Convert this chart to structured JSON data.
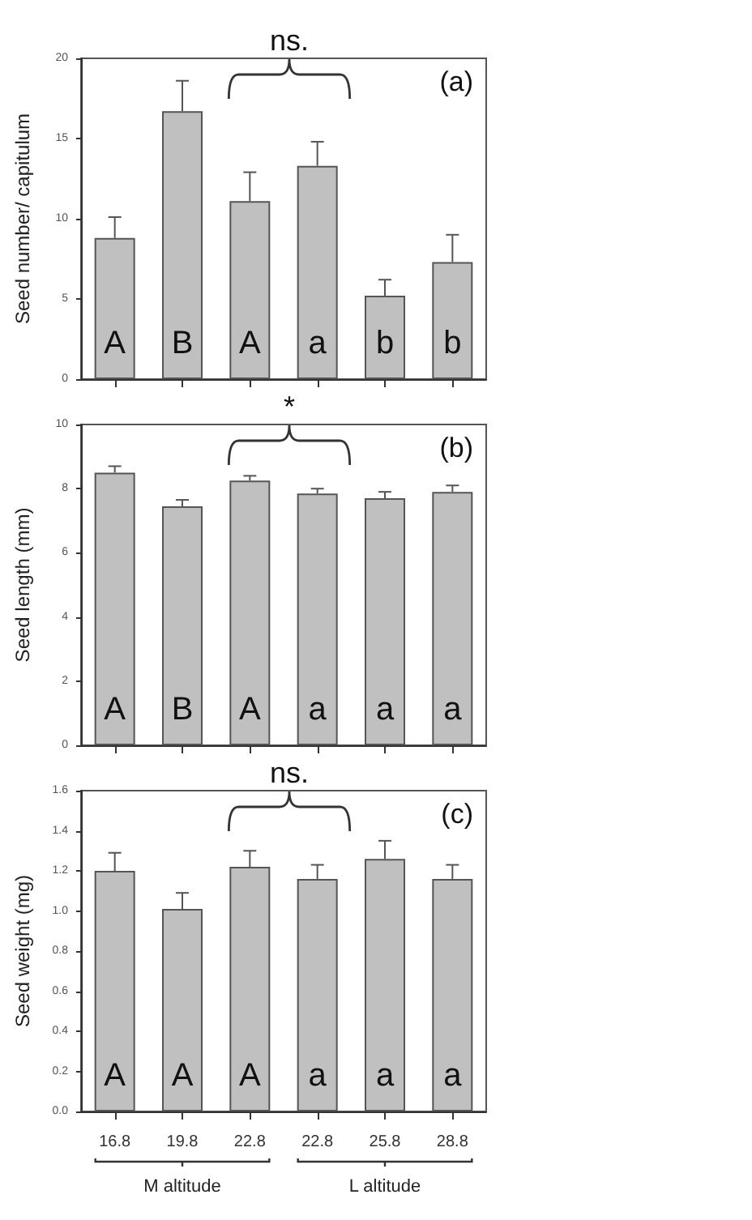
{
  "chart_data": [
    {
      "type": "bar",
      "ylabel": "Seed number/ capitulum",
      "categories": [
        "16.8",
        "19.8",
        "22.8",
        "22.8",
        "25.8",
        "28.8"
      ],
      "values": [
        8.8,
        16.7,
        11.1,
        13.3,
        5.2,
        7.3
      ],
      "errors": [
        [
          8.8,
          10.1
        ],
        [
          16.7,
          18.6
        ],
        [
          11.1,
          12.9
        ],
        [
          13.3,
          14.8
        ],
        [
          5.2,
          6.2
        ],
        [
          7.3,
          9.0
        ]
      ],
      "color": "#c0c0c0",
      "value_labels": [
        "A",
        "B",
        "A",
        "a",
        "b",
        "b"
      ],
      "ylim": [
        0,
        20
      ],
      "yticks": [
        0,
        5,
        10,
        15,
        20
      ],
      "tick_labels": "y",
      "annotations": [
        "(a)",
        "ns."
      ]
    },
    {
      "type": "bar",
      "ylabel": "Seed length (mm)",
      "categories": [
        "16.8",
        "19.8",
        "22.8",
        "22.8",
        "25.8",
        "28.8"
      ],
      "values": [
        8.5,
        7.45,
        8.25,
        7.85,
        7.7,
        7.9
      ],
      "errors": [
        [
          8.5,
          8.7
        ],
        [
          7.45,
          7.65
        ],
        [
          8.25,
          8.4
        ],
        [
          7.85,
          8.0
        ],
        [
          7.7,
          7.9
        ],
        [
          7.9,
          8.1
        ]
      ],
      "color": "#c0c0c0",
      "value_labels": [
        "A",
        "B",
        "A",
        "a",
        "a",
        "a"
      ],
      "ylim": [
        0,
        10
      ],
      "yticks": [
        0,
        2,
        4,
        6,
        8,
        10
      ],
      "tick_labels": "y",
      "annotations": [
        "(b)",
        "*"
      ]
    },
    {
      "type": "bar",
      "ylabel": "Seed weight (mg)",
      "categories": [
        "16.8",
        "19.8",
        "22.8",
        "22.8",
        "25.8",
        "28.8"
      ],
      "values": [
        1.2,
        1.01,
        1.22,
        1.16,
        1.26,
        1.16
      ],
      "errors": [
        [
          1.2,
          1.29
        ],
        [
          1.01,
          1.09
        ],
        [
          1.22,
          1.3
        ],
        [
          1.16,
          1.23
        ],
        [
          1.26,
          1.35
        ],
        [
          1.16,
          1.23
        ]
      ],
      "color": "#c0c0c0",
      "value_labels": [
        "A",
        "A",
        "A",
        "a",
        "a",
        "a"
      ],
      "ylim": [
        0,
        1.6
      ],
      "yticks": [
        {
          "value": 0,
          "label": "0.0"
        },
        0.2,
        0.4,
        0.6,
        0.8,
        {
          "value": 1,
          "label": "1.0"
        },
        1.2,
        1.4,
        1.6
      ],
      "annotations": [
        "(c)",
        "ns.",
        "M altitude",
        "L altitude"
      ]
    }
  ]
}
